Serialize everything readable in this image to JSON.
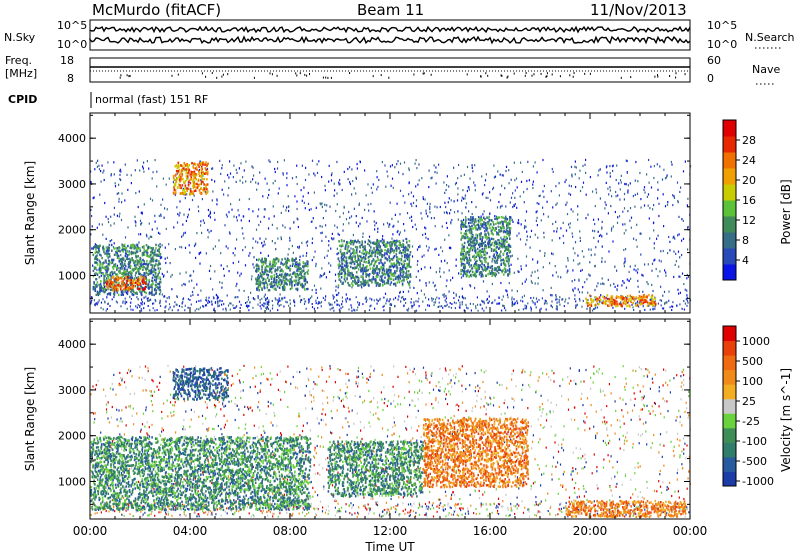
{
  "header": {
    "title": "McMurdo (fitACF)",
    "beam": "Beam 11",
    "date": "11/Nov/2013"
  },
  "noise_panel": {
    "left_label": "N.Sky",
    "right_label": "N.Search",
    "left_ticks": [
      "10^5",
      "10^0"
    ],
    "right_ticks": [
      "10^5",
      "10^0"
    ]
  },
  "freq_panel": {
    "left_label_1": "Freq.",
    "left_label_2": "[MHz]",
    "left_ticks": [
      "18",
      "8"
    ],
    "right_label": "Nave",
    "right_ticks": [
      "60",
      "0"
    ]
  },
  "cpid": {
    "label": "CPID",
    "text": "normal (fast) 151 RF"
  },
  "chart_data": [
    {
      "type": "heatmap",
      "title": "",
      "xlabel": "",
      "ylabel": "Slant Range [km]",
      "x_ticks": [
        "00:00",
        "04:00",
        "08:00",
        "12:00",
        "16:00",
        "20:00",
        "00:00"
      ],
      "y_ticks": [
        "1000",
        "2000",
        "3000",
        "4000"
      ],
      "ylim": [
        180,
        4550
      ],
      "colorbar": {
        "label": "Power [dB]",
        "tick_labels": [
          "4",
          "8",
          "12",
          "16",
          "20",
          "24",
          "28"
        ],
        "colors": [
          "#0a14e6",
          "#2849b8",
          "#356e86",
          "#3f8b5a",
          "#5cc23a",
          "#c8cc00",
          "#f0a000",
          "#f07000",
          "#e82800",
          "#e00000"
        ]
      },
      "regions": [
        {
          "t_start": 0.1,
          "t_end": 2.8,
          "r_low": 600,
          "r_high": 1700,
          "value": "green"
        },
        {
          "t_start": 0.6,
          "t_end": 2.2,
          "r_low": 700,
          "r_high": 1000,
          "value": "red"
        },
        {
          "t_start": 3.3,
          "t_end": 4.7,
          "r_low": 2800,
          "r_high": 3500,
          "value": "orange"
        },
        {
          "t_start": 6.6,
          "t_end": 8.7,
          "r_low": 700,
          "r_high": 1400,
          "value": "green"
        },
        {
          "t_start": 9.9,
          "t_end": 12.8,
          "r_low": 800,
          "r_high": 1800,
          "value": "green"
        },
        {
          "t_start": 14.8,
          "t_end": 16.8,
          "r_low": 1000,
          "r_high": 2300,
          "value": "green"
        },
        {
          "t_start": 19.8,
          "t_end": 22.6,
          "r_low": 350,
          "r_high": 600,
          "value": "orange"
        }
      ]
    },
    {
      "type": "heatmap",
      "title": "",
      "xlabel": "Time UT",
      "ylabel": "Slant Range [km]",
      "x_ticks": [
        "00:00",
        "04:00",
        "08:00",
        "12:00",
        "16:00",
        "20:00",
        "00:00"
      ],
      "y_ticks": [
        "1000",
        "2000",
        "3000",
        "4000"
      ],
      "ylim": [
        180,
        4550
      ],
      "colorbar": {
        "label": "Velocity [m s^-1]",
        "tick_labels": [
          "1000",
          "500",
          "100",
          "25",
          "-25",
          "-100",
          "-500",
          "-1000"
        ],
        "colors": [
          "#1c3ca8",
          "#285aa0",
          "#2f7d6a",
          "#3f8e58",
          "#6ad23c",
          "#c8c8c8",
          "#f3ad20",
          "#f08a1a",
          "#ef6a10",
          "#e84008",
          "#e00000"
        ]
      },
      "regions": [
        {
          "t_start": 0.0,
          "t_end": 8.8,
          "r_low": 400,
          "r_high": 2000,
          "value": "green"
        },
        {
          "t_start": 3.3,
          "t_end": 5.5,
          "r_low": 2800,
          "r_high": 3500,
          "value": "blue"
        },
        {
          "t_start": 9.5,
          "t_end": 13.3,
          "r_low": 700,
          "r_high": 1900,
          "value": "green"
        },
        {
          "t_start": 13.3,
          "t_end": 17.5,
          "r_low": 900,
          "r_high": 2400,
          "value": "orange"
        },
        {
          "t_start": 19.0,
          "t_end": 23.8,
          "r_low": 250,
          "r_high": 600,
          "value": "orange"
        }
      ]
    }
  ]
}
